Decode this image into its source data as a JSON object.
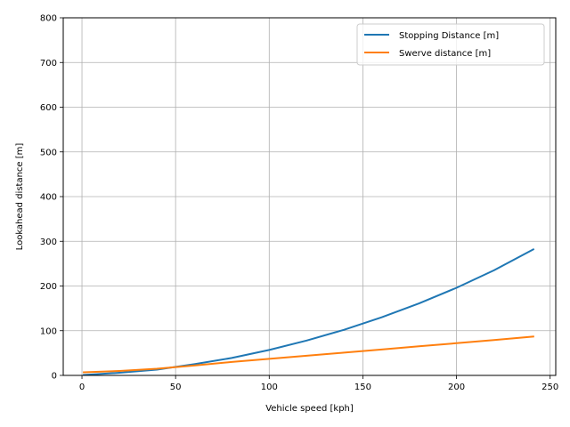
{
  "chart_data": {
    "type": "line",
    "xlabel": "Vehicle speed [kph]",
    "ylabel": "Lookahead distance [m]",
    "xlim": [
      -10,
      253
    ],
    "ylim": [
      0,
      800
    ],
    "xticks": [
      0,
      50,
      100,
      150,
      200,
      250
    ],
    "yticks": [
      0,
      100,
      200,
      300,
      400,
      500,
      600,
      700,
      800
    ],
    "grid": true,
    "legend_position": "top-right",
    "x": [
      1,
      20,
      40,
      60,
      80,
      100,
      120,
      140,
      160,
      180,
      200,
      220,
      241
    ],
    "series": [
      {
        "name": "Stopping Distance [m]",
        "color": "#1f77b4",
        "values": [
          1,
          6,
          13,
          25,
          39,
          57,
          78,
          102,
          130,
          161,
          196,
          235,
          282
        ]
      },
      {
        "name": "Swerve distance [m]",
        "color": "#ff7f0e",
        "values": [
          7,
          10,
          15,
          22,
          30,
          37,
          44,
          51,
          58,
          65,
          72,
          79,
          87
        ]
      }
    ]
  }
}
